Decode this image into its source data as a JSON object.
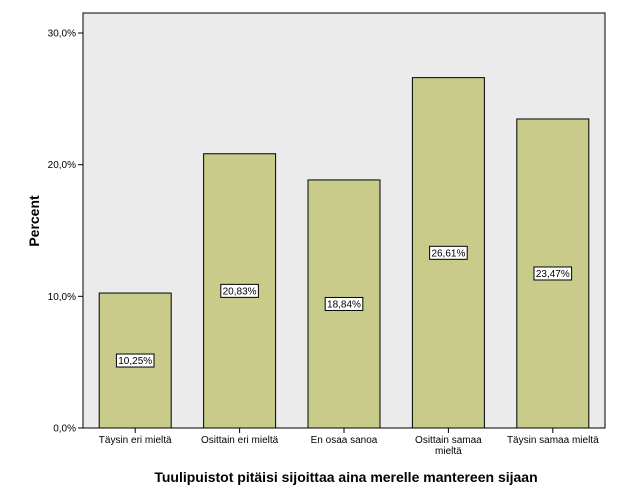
{
  "chart_data": {
    "type": "bar",
    "categories": [
      [
        "Täysin eri mieltä"
      ],
      [
        "Osittain eri mieltä"
      ],
      [
        "En osaa sanoa"
      ],
      [
        "Osittain samaa",
        "mieltä"
      ],
      [
        "Täysin samaa mieltä"
      ]
    ],
    "values": [
      10.25,
      20.83,
      18.84,
      26.61,
      23.47
    ],
    "data_labels": [
      "10,25%",
      "20,83%",
      "18,84%",
      "26,61%",
      "23,47%"
    ],
    "xlabel": "Tuulipuistot pitäisi sijoittaa aina merelle mantereen sijaan",
    "ylabel": "Percent",
    "ylim": [
      0,
      30
    ],
    "yticks": [
      0,
      10,
      20,
      30
    ],
    "ytick_labels": [
      "0,0%",
      "10,0%",
      "20,0%",
      "30,0%"
    ],
    "grid": false,
    "legend": "none",
    "colors": {
      "bar_fill": "#c8cb8a",
      "bar_stroke": "#000000",
      "plot_background": "#ebebeb",
      "label_box": "#ffffff"
    }
  }
}
